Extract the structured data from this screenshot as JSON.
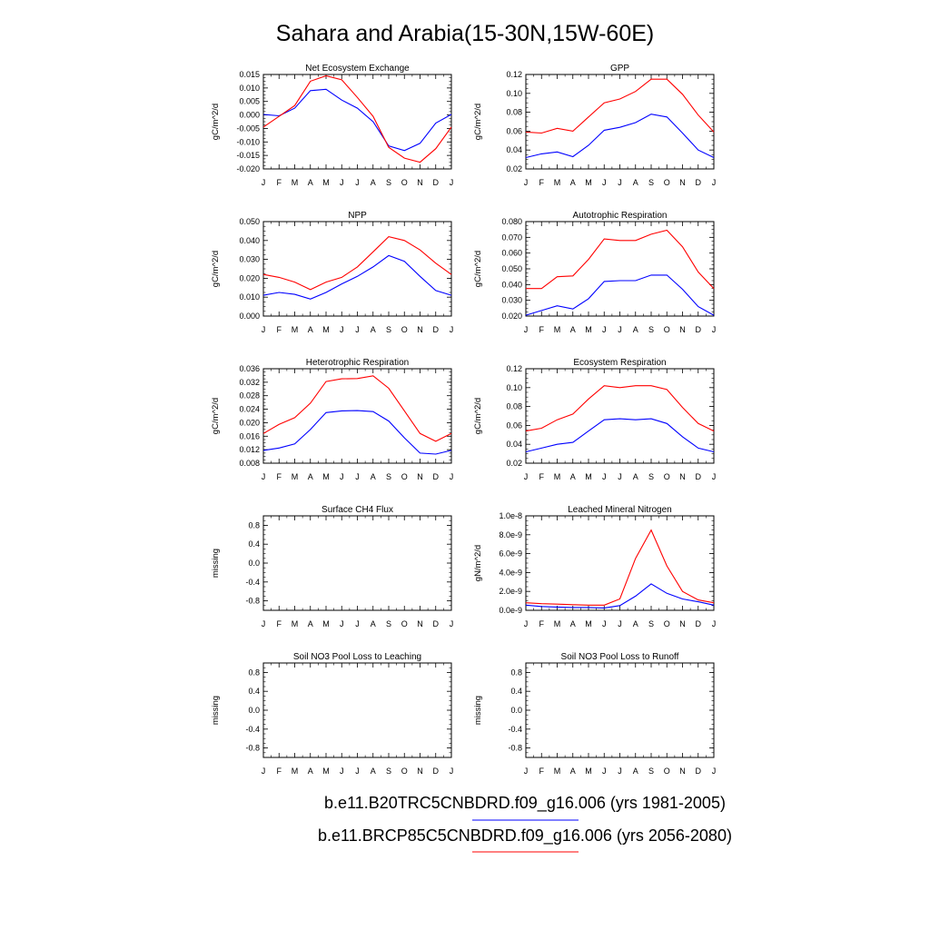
{
  "title": "Sahara and Arabia(15-30N,15W-60E)",
  "months": [
    "J",
    "F",
    "M",
    "A",
    "M",
    "J",
    "J",
    "A",
    "S",
    "O",
    "N",
    "D",
    "J"
  ],
  "colors": {
    "blue": "#0000ff",
    "red": "#ff0000",
    "axis": "#000000"
  },
  "legend": [
    {
      "label": "b.e11.B20TRC5CNBDRD.f09_g16.006 (yrs 1981-2005)",
      "color": "#0000ff"
    },
    {
      "label": "b.e11.BRCP85C5CNBDRD.f09_g16.006 (yrs 2056-2080)",
      "color": "#ff0000"
    }
  ],
  "chart_data": [
    {
      "type": "line",
      "title": "Net Ecosystem Exchange",
      "ylabel": "gC/m^2/d",
      "ylim": [
        -0.02,
        0.015
      ],
      "yticks": [
        "0.015",
        "0.010",
        "0.005",
        "0.000",
        "-0.005",
        "-0.010",
        "-0.015",
        "-0.020"
      ],
      "yticks_values": [
        0.015,
        0.01,
        0.005,
        0.0,
        -0.005,
        -0.01,
        -0.015,
        -0.02
      ],
      "series": [
        {
          "color": "blue",
          "values": [
            0.0002,
            -0.0003,
            0.0025,
            0.009,
            0.0095,
            0.0055,
            0.0025,
            -0.0025,
            -0.0115,
            -0.0132,
            -0.0105,
            -0.003,
            0.0002
          ]
        },
        {
          "color": "red",
          "values": [
            -0.0045,
            -0.0005,
            0.0035,
            0.0125,
            0.0145,
            0.013,
            0.0065,
            -0.0005,
            -0.012,
            -0.016,
            -0.0175,
            -0.0125,
            -0.0045
          ]
        }
      ]
    },
    {
      "type": "line",
      "title": "GPP",
      "ylabel": "gC/m^2/d",
      "ylim": [
        0.02,
        0.12
      ],
      "yticks": [
        "0.12",
        "0.10",
        "0.08",
        "0.06",
        "0.04",
        "0.02"
      ],
      "yticks_values": [
        0.12,
        0.1,
        0.08,
        0.06,
        0.04,
        0.02
      ],
      "series": [
        {
          "color": "blue",
          "values": [
            0.032,
            0.036,
            0.038,
            0.033,
            0.045,
            0.061,
            0.064,
            0.069,
            0.078,
            0.075,
            0.058,
            0.04,
            0.032
          ]
        },
        {
          "color": "red",
          "values": [
            0.059,
            0.058,
            0.063,
            0.06,
            0.075,
            0.09,
            0.094,
            0.102,
            0.115,
            0.115,
            0.099,
            0.077,
            0.059
          ]
        }
      ]
    },
    {
      "type": "line",
      "title": "NPP",
      "ylabel": "gC/m^2/d",
      "ylim": [
        0.0,
        0.05
      ],
      "yticks": [
        "0.050",
        "0.040",
        "0.030",
        "0.020",
        "0.010",
        "0.000"
      ],
      "yticks_values": [
        0.05,
        0.04,
        0.03,
        0.02,
        0.01,
        0.0
      ],
      "series": [
        {
          "color": "blue",
          "values": [
            0.011,
            0.0125,
            0.0115,
            0.009,
            0.0125,
            0.017,
            0.021,
            0.026,
            0.032,
            0.029,
            0.021,
            0.0135,
            0.011
          ]
        },
        {
          "color": "red",
          "values": [
            0.022,
            0.0205,
            0.018,
            0.014,
            0.018,
            0.0205,
            0.026,
            0.034,
            0.042,
            0.04,
            0.035,
            0.028,
            0.022
          ]
        }
      ]
    },
    {
      "type": "line",
      "title": "Autotrophic Respiration",
      "ylabel": "gC/m^2/d",
      "ylim": [
        0.02,
        0.08
      ],
      "yticks": [
        "0.080",
        "0.070",
        "0.060",
        "0.050",
        "0.040",
        "0.030",
        "0.020"
      ],
      "yticks_values": [
        0.08,
        0.07,
        0.06,
        0.05,
        0.04,
        0.03,
        0.02
      ],
      "series": [
        {
          "color": "blue",
          "values": [
            0.0205,
            0.0235,
            0.0265,
            0.0245,
            0.031,
            0.042,
            0.0425,
            0.0425,
            0.046,
            0.046,
            0.037,
            0.026,
            0.0205
          ]
        },
        {
          "color": "red",
          "values": [
            0.0375,
            0.0375,
            0.045,
            0.0455,
            0.056,
            0.069,
            0.068,
            0.068,
            0.072,
            0.0745,
            0.064,
            0.048,
            0.0375
          ]
        }
      ]
    },
    {
      "type": "line",
      "title": "Heterotrophic Respiration",
      "ylabel": "gC/m^2/d",
      "ylim": [
        0.008,
        0.036
      ],
      "yticks": [
        "0.036",
        "0.032",
        "0.028",
        "0.024",
        "0.020",
        "0.016",
        "0.012",
        "0.008"
      ],
      "yticks_values": [
        0.036,
        0.032,
        0.028,
        0.024,
        0.02,
        0.016,
        0.012,
        0.008
      ],
      "series": [
        {
          "color": "blue",
          "values": [
            0.0118,
            0.0125,
            0.0137,
            0.018,
            0.023,
            0.0235,
            0.0236,
            0.0233,
            0.0205,
            0.0155,
            0.011,
            0.0107,
            0.0118
          ]
        },
        {
          "color": "red",
          "values": [
            0.0168,
            0.0195,
            0.0215,
            0.0258,
            0.0322,
            0.033,
            0.0331,
            0.0339,
            0.0302,
            0.0235,
            0.0168,
            0.0145,
            0.0168
          ]
        }
      ]
    },
    {
      "type": "line",
      "title": "Ecosystem Respiration",
      "ylabel": "gC/m^2/d",
      "ylim": [
        0.02,
        0.12
      ],
      "yticks": [
        "0.12",
        "0.10",
        "0.08",
        "0.06",
        "0.04",
        "0.02"
      ],
      "yticks_values": [
        0.12,
        0.1,
        0.08,
        0.06,
        0.04,
        0.02
      ],
      "series": [
        {
          "color": "blue",
          "values": [
            0.032,
            0.036,
            0.04,
            0.042,
            0.054,
            0.066,
            0.067,
            0.066,
            0.067,
            0.062,
            0.048,
            0.036,
            0.032
          ]
        },
        {
          "color": "red",
          "values": [
            0.054,
            0.057,
            0.066,
            0.072,
            0.088,
            0.102,
            0.1,
            0.102,
            0.102,
            0.098,
            0.079,
            0.062,
            0.054
          ]
        }
      ]
    },
    {
      "type": "line",
      "title": "Surface CH4 Flux",
      "ylabel": "missing",
      "ylim": [
        -1.0,
        1.0
      ],
      "yticks": [
        "0.8",
        "0.4",
        "0.0",
        "-0.4",
        "-0.8"
      ],
      "yticks_values": [
        0.8,
        0.4,
        0.0,
        -0.4,
        -0.8
      ],
      "series": []
    },
    {
      "type": "line",
      "title": "Leached Mineral Nitrogen",
      "ylabel": "gN/m^2/d",
      "ylim": [
        0.0,
        1e-08
      ],
      "yticks": [
        "1.0e-8",
        "8.0e-9",
        "6.0e-9",
        "4.0e-9",
        "2.0e-9",
        "0.0e-9"
      ],
      "yticks_values": [
        1e-08,
        8e-09,
        6e-09,
        4e-09,
        2e-09,
        0.0
      ],
      "series": [
        {
          "color": "blue",
          "values": [
            5.5e-10,
            4e-10,
            3.5e-10,
            3e-10,
            3e-10,
            2.5e-10,
            5e-10,
            1.5e-09,
            2.8e-09,
            1.8e-09,
            1.2e-09,
            9e-10,
            5.5e-10
          ]
        },
        {
          "color": "red",
          "values": [
            8e-10,
            7e-10,
            6.5e-10,
            6e-10,
            5.5e-10,
            5.5e-10,
            1.2e-09,
            5.5e-09,
            8.5e-09,
            4.7e-09,
            2e-09,
            1.1e-09,
            8e-10
          ]
        }
      ]
    },
    {
      "type": "line",
      "title": "Soil NO3 Pool Loss to Leaching",
      "ylabel": "missing",
      "ylim": [
        -1.0,
        1.0
      ],
      "yticks": [
        "0.8",
        "0.4",
        "0.0",
        "-0.4",
        "-0.8"
      ],
      "yticks_values": [
        0.8,
        0.4,
        0.0,
        -0.4,
        -0.8
      ],
      "series": []
    },
    {
      "type": "line",
      "title": "Soil NO3 Pool Loss to Runoff",
      "ylabel": "missing",
      "ylim": [
        -1.0,
        1.0
      ],
      "yticks": [
        "0.8",
        "0.4",
        "0.0",
        "-0.4",
        "-0.8"
      ],
      "yticks_values": [
        0.8,
        0.4,
        0.0,
        -0.4,
        -0.8
      ],
      "series": []
    }
  ]
}
